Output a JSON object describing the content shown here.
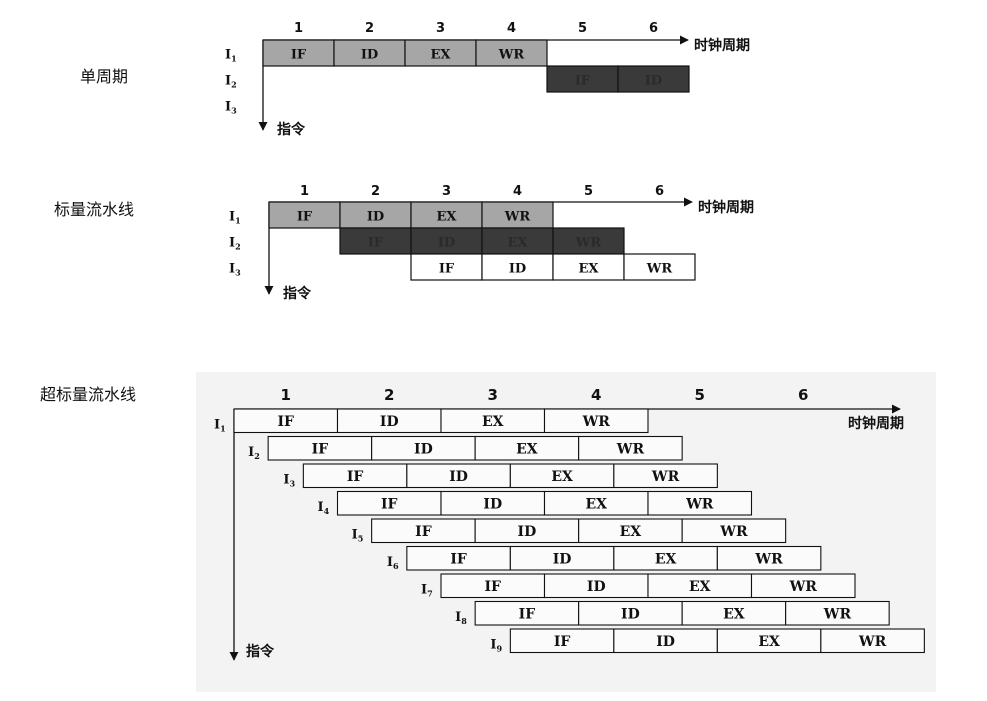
{
  "labels": {
    "single": "单周期",
    "scalar": "标量流水线",
    "superscalar": "超标量流水线"
  },
  "axis": {
    "time": "时钟周期",
    "instr": "指令",
    "cycles": [
      "1",
      "2",
      "3",
      "4",
      "5",
      "6"
    ]
  },
  "stages": [
    "IF",
    "ID",
    "EX",
    "WR"
  ],
  "colors": {
    "light_gray": "#a6a6a6",
    "dark_gray": "#3a3a3a",
    "white": "#ffffff",
    "stroke": "#111111"
  },
  "single": {
    "instructions": [
      {
        "label": "I1",
        "start": 0,
        "stages": 4,
        "fill": "light"
      },
      {
        "label": "I2",
        "start": 4,
        "stages": 2,
        "fill": "dark"
      },
      {
        "label": "I3",
        "start": null,
        "stages": 0,
        "fill": "none"
      }
    ]
  },
  "scalar": {
    "instructions": [
      {
        "label": "I1",
        "start": 0,
        "stages": 4,
        "fill": "light"
      },
      {
        "label": "I2",
        "start": 1,
        "stages": 4,
        "fill": "dark"
      },
      {
        "label": "I3",
        "start": 2,
        "stages": 4,
        "fill": "white"
      }
    ]
  },
  "superscalar": {
    "instructions": [
      {
        "label": "I1",
        "start": 0.0,
        "stages": 4
      },
      {
        "label": "I2",
        "start": 0.33,
        "stages": 4
      },
      {
        "label": "I3",
        "start": 0.67,
        "stages": 4
      },
      {
        "label": "I4",
        "start": 1.0,
        "stages": 4
      },
      {
        "label": "I5",
        "start": 1.33,
        "stages": 4
      },
      {
        "label": "I6",
        "start": 1.67,
        "stages": 4
      },
      {
        "label": "I7",
        "start": 2.0,
        "stages": 4
      },
      {
        "label": "I8",
        "start": 2.33,
        "stages": 4
      },
      {
        "label": "I9",
        "start": 2.67,
        "stages": 4
      }
    ]
  }
}
